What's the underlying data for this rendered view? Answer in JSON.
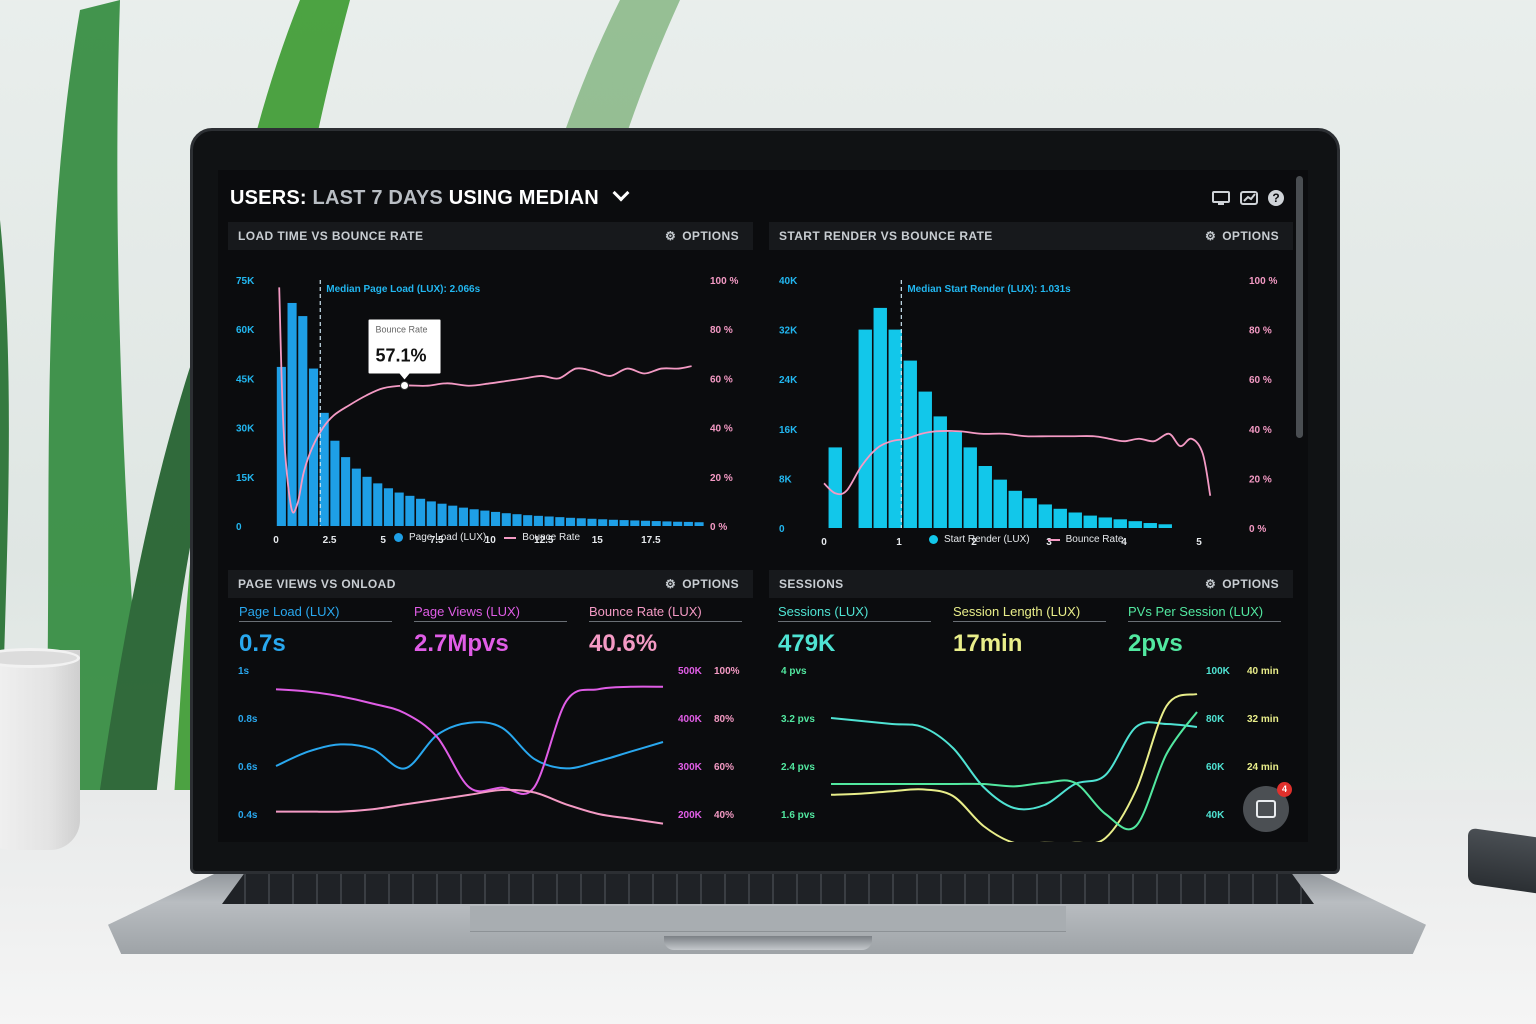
{
  "header": {
    "title_prefix": "USERS:",
    "title_muted": "LAST 7 DAYS",
    "title_bold": "USING MEDIAN"
  },
  "top_icons": [
    "monitor-icon",
    "chart-icon",
    "help-icon"
  ],
  "help_glyph": "?",
  "panels": {
    "load_time": {
      "title": "LOAD TIME VS BOUNCE RATE",
      "options": "OPTIONS",
      "median_label": "Median Page Load (LUX): 2.066s",
      "tooltip_title": "Bounce Rate",
      "tooltip_value": "57.1%",
      "legend": [
        "Page Load (LUX)",
        "Bounce Rate"
      ]
    },
    "start_render": {
      "title": "START RENDER VS BOUNCE RATE",
      "options": "OPTIONS",
      "median_label": "Median Start Render (LUX): 1.031s",
      "legend": [
        "Start Render (LUX)",
        "Bounce Rate"
      ]
    },
    "page_views": {
      "title": "PAGE VIEWS VS ONLOAD",
      "options": "OPTIONS",
      "kpis": [
        {
          "label": "Page Load (LUX)",
          "value": "0.7s",
          "color": "#29a8ef"
        },
        {
          "label": "Page Views (LUX)",
          "value": "2.7Mpvs",
          "color": "#e05de6"
        },
        {
          "label": "Bounce Rate (LUX)",
          "value": "40.6%",
          "color": "#f49ac4"
        }
      ]
    },
    "sessions": {
      "title": "SESSIONS",
      "options": "OPTIONS",
      "kpis": [
        {
          "label": "Sessions (LUX)",
          "value": "479K",
          "color": "#4fe3d3"
        },
        {
          "label": "Session Length (LUX)",
          "value": "17min",
          "color": "#e9ee8a"
        },
        {
          "label": "PVs Per Session (LUX)",
          "value": "2pvs",
          "color": "#52e8a0"
        }
      ]
    }
  },
  "chat": {
    "badge": "4"
  },
  "chart_data": [
    {
      "type": "bar",
      "title": "LOAD TIME VS BOUNCE RATE",
      "x_ticks": [
        "0",
        "2.5",
        "5",
        "7.5",
        "10",
        "12.5",
        "15",
        "17.5"
      ],
      "x_range": [
        0,
        19.7
      ],
      "y_left_ticks": [
        "0",
        "15K",
        "30K",
        "45K",
        "60K",
        "75K"
      ],
      "y_left_range": [
        0,
        75000
      ],
      "y_right_ticks": [
        "0 %",
        "20 %",
        "40 %",
        "60 %",
        "80 %",
        "100 %"
      ],
      "y_right_range": [
        0,
        100
      ],
      "median_x": 2.066,
      "series": [
        {
          "name": "Page Load (LUX)",
          "kind": "bar",
          "color": "#1e9fe6",
          "bin_start": 0,
          "bin_width": 0.5,
          "values": [
            48500,
            68000,
            64000,
            48000,
            34500,
            26000,
            21000,
            17500,
            15000,
            13000,
            11500,
            10200,
            9200,
            8300,
            7500,
            6800,
            6200,
            5600,
            5100,
            4700,
            4300,
            3900,
            3600,
            3300,
            3100,
            2900,
            2700,
            2500,
            2350,
            2200,
            2050,
            1900,
            1800,
            1700,
            1600,
            1500,
            1400,
            1300,
            1250,
            1150
          ]
        },
        {
          "name": "Bounce Rate",
          "kind": "line",
          "color": "#f49ac4",
          "x": [
            0.15,
            0.35,
            0.7,
            1.0,
            1.3,
            1.7,
            2.2,
            2.7,
            3.4,
            4.2,
            5.0,
            6.0,
            7.0,
            8.0,
            9.0,
            10.0,
            10.8,
            11.6,
            12.4,
            13.2,
            14.0,
            14.8,
            15.6,
            16.4,
            17.2,
            18.0,
            18.8,
            19.4
          ],
          "values": [
            97,
            40,
            8,
            9,
            22,
            32,
            40,
            45,
            49,
            53,
            56,
            57.1,
            57,
            58,
            57,
            58,
            59,
            60,
            61,
            60,
            64,
            63,
            61,
            64,
            62,
            64,
            64,
            65
          ]
        }
      ],
      "legend_placement": "bottom"
    },
    {
      "type": "bar",
      "title": "START RENDER VS BOUNCE RATE",
      "x_ticks": [
        "0",
        "1",
        "2",
        "3",
        "4",
        "5"
      ],
      "x_range": [
        0,
        5.2
      ],
      "y_left_ticks": [
        "0",
        "8K",
        "16K",
        "24K",
        "32K",
        "40K"
      ],
      "y_left_range": [
        0,
        40000
      ],
      "y_right_ticks": [
        "0 %",
        "20 %",
        "40 %",
        "60 %",
        "80 %",
        "100 %"
      ],
      "y_right_range": [
        0,
        100
      ],
      "median_x": 1.031,
      "series": [
        {
          "name": "Start Render (LUX)",
          "kind": "bar",
          "color": "#12c7ea",
          "bin_start": 0.05,
          "bin_width": 0.2,
          "values": [
            13000,
            0,
            32000,
            35500,
            32000,
            27000,
            22000,
            18000,
            15500,
            13000,
            10000,
            7800,
            6000,
            4800,
            3800,
            3100,
            2500,
            2000,
            1700,
            1400,
            1100,
            800,
            600
          ]
        },
        {
          "name": "Bounce Rate",
          "kind": "line",
          "color": "#f49ac4",
          "x": [
            0.0,
            0.15,
            0.3,
            0.5,
            0.7,
            0.9,
            1.1,
            1.3,
            1.5,
            1.8,
            2.1,
            2.4,
            2.7,
            3.0,
            3.3,
            3.6,
            3.8,
            4.0,
            4.2,
            4.4,
            4.6,
            4.75,
            4.9,
            5.05,
            5.15
          ],
          "values": [
            18,
            14,
            15,
            25,
            32,
            35,
            36,
            38,
            39,
            39,
            38,
            38,
            37,
            37,
            37,
            37,
            36,
            35,
            36,
            35,
            38,
            33,
            36,
            30,
            13
          ]
        }
      ],
      "legend_placement": "bottom"
    },
    {
      "type": "line",
      "title": "PAGE VIEWS VS ONLOAD",
      "y_left_ticks": [
        "1s",
        "0.8s",
        "0.6s",
        "0.4s"
      ],
      "y_left_range": [
        0.4,
        1.0
      ],
      "y_right_ticks_a": [
        "500K",
        "400K",
        "300K",
        "200K"
      ],
      "y_right_ticks_b": [
        "100%",
        "80%",
        "60%",
        "40%"
      ],
      "x": [
        0,
        1,
        2,
        3,
        4,
        5,
        6,
        7,
        8,
        9,
        10,
        11,
        12
      ],
      "series": [
        {
          "name": "Page Load (LUX)",
          "color": "#29a8ef",
          "values": [
            0.6,
            0.66,
            0.69,
            0.67,
            0.59,
            0.73,
            0.78,
            0.76,
            0.63,
            0.59,
            0.62,
            0.66,
            0.7
          ]
        },
        {
          "name": "Page Views (LUX)",
          "color": "#e05de6",
          "values": [
            0.92,
            0.91,
            0.89,
            0.86,
            0.82,
            0.72,
            0.51,
            0.51,
            0.51,
            0.87,
            0.92,
            0.93,
            0.93
          ]
        },
        {
          "name": "Bounce Rate (LUX)",
          "color": "#f49ac4",
          "values": [
            0.41,
            0.41,
            0.41,
            0.42,
            0.44,
            0.46,
            0.48,
            0.5,
            0.49,
            0.44,
            0.4,
            0.38,
            0.36
          ]
        }
      ]
    },
    {
      "type": "line",
      "title": "SESSIONS",
      "y_left_ticks": [
        "4 pvs",
        "3.2 pvs",
        "2.4 pvs",
        "1.6 pvs"
      ],
      "y_left_range": [
        1.6,
        4.0
      ],
      "y_right_ticks_a": [
        "100K",
        "80K",
        "60K",
        "40K"
      ],
      "y_right_ticks_b": [
        "40 min",
        "32 min",
        "24 min"
      ],
      "x": [
        0,
        1,
        2,
        3,
        4,
        5,
        6,
        7,
        8,
        9,
        10,
        11,
        12
      ],
      "series": [
        {
          "name": "Sessions (LUX)",
          "color": "#4fe3d3",
          "values": [
            3.2,
            3.15,
            3.1,
            3.05,
            2.7,
            2.05,
            1.7,
            1.75,
            2.1,
            2.25,
            3.05,
            3.1,
            3.05
          ]
        },
        {
          "name": "Session Length (LUX)",
          "color": "#e9ee8a",
          "values": [
            1.92,
            1.94,
            1.98,
            2.01,
            1.9,
            1.4,
            1.12,
            1.12,
            1.12,
            1.2,
            2.0,
            3.4,
            3.6
          ]
        },
        {
          "name": "PVs Per Session (LUX)",
          "color": "#52e8a0",
          "values": [
            2.1,
            2.1,
            2.1,
            2.1,
            2.1,
            2.1,
            2.06,
            2.12,
            2.12,
            1.6,
            1.4,
            2.6,
            3.3
          ]
        }
      ]
    }
  ]
}
